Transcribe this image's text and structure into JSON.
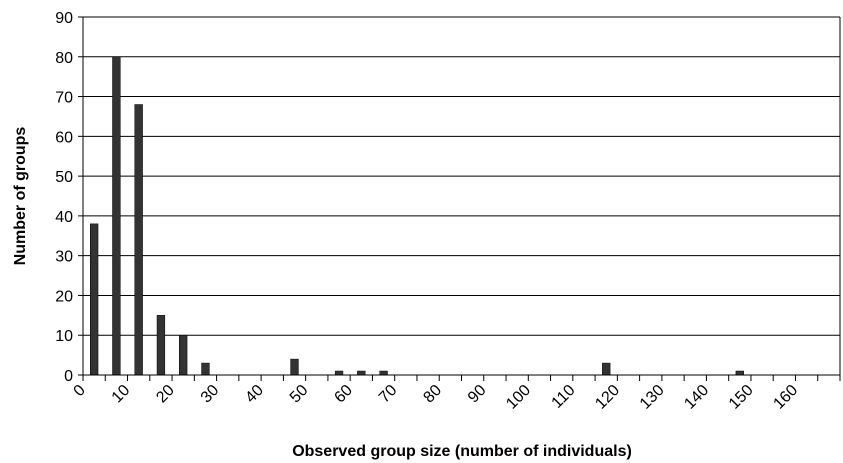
{
  "chart_data": {
    "type": "bar",
    "title": "",
    "xlabel": "Observed group size (number of individuals)",
    "ylabel": "Number of groups",
    "ylim": [
      0,
      90
    ],
    "y_ticks": [
      "0",
      "10",
      "20",
      "30",
      "40",
      "50",
      "60",
      "70",
      "80",
      "90"
    ],
    "x_ticks": [
      "0",
      "10",
      "20",
      "30",
      "40",
      "50",
      "60",
      "70",
      "80",
      "90",
      "100",
      "110",
      "120",
      "130",
      "140",
      "150",
      "160"
    ],
    "bin_width": 5,
    "categories": [
      "0-5",
      "5-10",
      "10-15",
      "15-20",
      "20-25",
      "25-30",
      "30-35",
      "35-40",
      "40-45",
      "45-50",
      "50-55",
      "55-60",
      "60-65",
      "65-70",
      "70-75",
      "75-80",
      "80-85",
      "85-90",
      "90-95",
      "95-100",
      "100-105",
      "105-110",
      "110-115",
      "115-120",
      "120-125",
      "125-130",
      "130-135",
      "135-140",
      "140-145",
      "145-150",
      "150-155",
      "155-160",
      "160-165",
      "165-170"
    ],
    "values": [
      38,
      80,
      68,
      15,
      10,
      3,
      0,
      0,
      0,
      4,
      0,
      1,
      1,
      1,
      0,
      0,
      0,
      0,
      0,
      0,
      0,
      0,
      0,
      3,
      0,
      0,
      0,
      0,
      0,
      1,
      0,
      0,
      0,
      0
    ],
    "grid": true,
    "legend": "none",
    "bar_color": "#333333"
  }
}
